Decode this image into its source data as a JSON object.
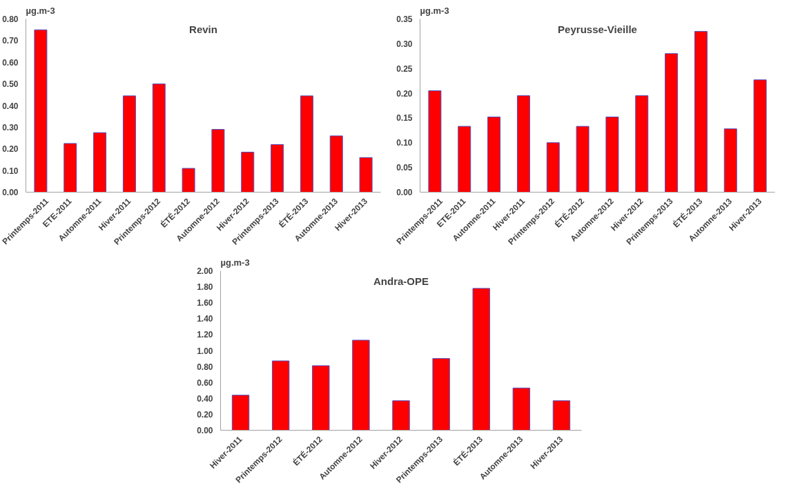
{
  "chart_data": [
    {
      "type": "bar",
      "title": "Revin",
      "ylabel": "µg.m-3",
      "color": "#ff0000",
      "categories": [
        "Printemps-2011",
        "ETE-2011",
        "Automne-2011",
        "Hiver-2011",
        "Printemps-2012",
        "ÉTÉ-2012",
        "Automne-2012",
        "Hiver-2012",
        "Printemps-2013",
        "ÉTÉ-2013",
        "Automne-2013",
        "Hiver-2013"
      ],
      "values": [
        0.75,
        0.225,
        0.275,
        0.445,
        0.5,
        0.11,
        0.29,
        0.185,
        0.22,
        0.445,
        0.26,
        0.16
      ],
      "ylim": [
        0,
        0.8
      ],
      "yticks": [
        {
          "value": 0,
          "label": "0.00"
        },
        {
          "value": 0.1,
          "label": "0.10"
        },
        {
          "value": 0.2,
          "label": "0.20"
        },
        {
          "value": 0.3,
          "label": "0.30"
        },
        {
          "value": 0.4,
          "label": "0.40"
        },
        {
          "value": 0.5,
          "label": "0.50"
        },
        {
          "value": 0.6,
          "label": "0.60"
        },
        {
          "value": 0.7,
          "label": "0.70"
        },
        {
          "value": 0.8,
          "label": "0.80"
        }
      ]
    },
    {
      "type": "bar",
      "title": "Peyrusse-Vieille",
      "ylabel": "µg.m-3",
      "color": "#ff0000",
      "categories": [
        "Printemps-2011",
        "ETE-2011",
        "Automne-2011",
        "Hiver-2011",
        "Printemps-2012",
        "ÉTÉ-2012",
        "Automne-2012",
        "Hiver-2012",
        "Printemps-2013",
        "ÉTÉ-2013",
        "Automne-2013",
        "Hiver-2013"
      ],
      "values": [
        0.205,
        0.133,
        0.152,
        0.195,
        0.1,
        0.133,
        0.152,
        0.195,
        0.28,
        0.325,
        0.128,
        0.227
      ],
      "ylim": [
        0,
        0.35
      ],
      "yticks": [
        {
          "value": 0,
          "label": "0.00"
        },
        {
          "value": 0.05,
          "label": "0.05"
        },
        {
          "value": 0.1,
          "label": "0.10"
        },
        {
          "value": 0.15,
          "label": "0.15"
        },
        {
          "value": 0.2,
          "label": "0.20"
        },
        {
          "value": 0.25,
          "label": "0.25"
        },
        {
          "value": 0.3,
          "label": "0.30"
        },
        {
          "value": 0.35,
          "label": "0.35"
        }
      ]
    },
    {
      "type": "bar",
      "title": "Andra-OPE",
      "ylabel": "µg.m-3",
      "color": "#ff0000",
      "categories": [
        "Hiver-2011",
        "Printemps-2012",
        "ÉTÉ-2012",
        "Automne-2012",
        "Hiver-2012",
        "Printemps-2013",
        "ÉTÉ-2013",
        "Automne-2013",
        "Hiver-2013"
      ],
      "values": [
        0.44,
        0.87,
        0.81,
        1.13,
        0.37,
        0.9,
        1.78,
        0.53,
        0.37
      ],
      "ylim": [
        0,
        2.0
      ],
      "yticks": [
        {
          "value": 0,
          "label": "0.00"
        },
        {
          "value": 0.2,
          "label": "0.20"
        },
        {
          "value": 0.4,
          "label": "0.40"
        },
        {
          "value": 0.6,
          "label": "0.60"
        },
        {
          "value": 0.8,
          "label": "0.80"
        },
        {
          "value": 1.0,
          "label": "1.00"
        },
        {
          "value": 1.2,
          "label": "1.20"
        },
        {
          "value": 1.4,
          "label": "1.40"
        },
        {
          "value": 1.6,
          "label": "1.60"
        },
        {
          "value": 1.8,
          "label": "1.80"
        },
        {
          "value": 2.0,
          "label": "2.00"
        }
      ]
    }
  ]
}
